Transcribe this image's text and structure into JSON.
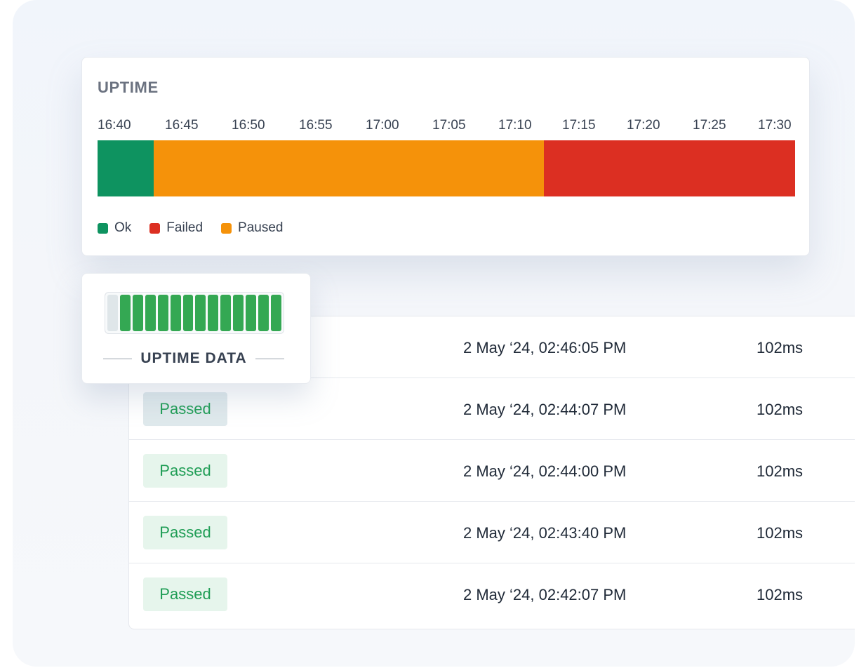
{
  "uptime": {
    "title": "UPTIME",
    "ticks": [
      "16:40",
      "16:45",
      "16:50",
      "16:55",
      "17:00",
      "17:05",
      "17:10",
      "17:15",
      "17:20",
      "17:25",
      "17:30"
    ],
    "segments": [
      {
        "status": "Ok",
        "start": "16:40",
        "end": "16:44"
      },
      {
        "status": "Paused",
        "start": "16:44",
        "end": "17:12"
      },
      {
        "status": "Failed",
        "start": "17:12",
        "end": "17:30"
      }
    ],
    "legend": [
      {
        "label": "Ok",
        "color": "#0e9360"
      },
      {
        "label": "Failed",
        "color": "#dc2f22"
      },
      {
        "label": "Paused",
        "color": "#f5920a"
      }
    ]
  },
  "uptime_data": {
    "label": "UPTIME DATA",
    "bars": [
      "empty",
      "ok",
      "ok",
      "ok",
      "ok",
      "ok",
      "ok",
      "ok",
      "ok",
      "ok",
      "ok",
      "ok",
      "ok",
      "ok"
    ],
    "colors": {
      "ok": "#34a853",
      "empty": "#dfe6e9"
    }
  },
  "table": {
    "rows": [
      {
        "status": "",
        "date": "2 May ‘24, 02:46:05 PM",
        "duration": "102ms"
      },
      {
        "status": "Passed",
        "date": "2 May ‘24, 02:44:07 PM",
        "duration": "102ms"
      },
      {
        "status": "Passed",
        "date": "2 May ‘24, 02:44:00 PM",
        "duration": "102ms"
      },
      {
        "status": "Passed",
        "date": "2 May ‘24, 02:43:40 PM",
        "duration": "102ms"
      },
      {
        "status": "Passed",
        "date": "2 May ‘24, 02:42:07 PM",
        "duration": "102ms"
      }
    ]
  }
}
